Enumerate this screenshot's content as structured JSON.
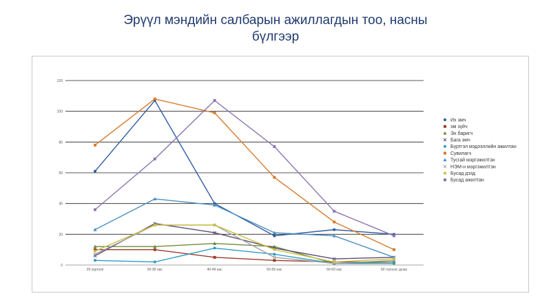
{
  "title_line1": "Эрүүл мэндийн салбарын ажиллагдын тоо, насны",
  "title_line2": "бүлгээр",
  "chart_data": {
    "type": "line",
    "title": "Эрүүл мэндийн салбарын ажиллагдын тоо, насны бүлгээр",
    "categories": [
      "29 хүртэлх",
      "30-39 нас",
      "40-49 нас",
      "50-59 нас",
      "60-69 нас",
      "60 түүнээс дээш"
    ],
    "ylim": [
      0,
      120
    ],
    "yticks": [
      0,
      20,
      40,
      60,
      80,
      100,
      120
    ],
    "grid": true,
    "legend_position": "right",
    "series": [
      {
        "name": "Их эмч",
        "color": "#2e5a9e",
        "marker": "circle",
        "values": [
          61,
          107,
          40,
          19,
          23,
          20
        ]
      },
      {
        "name": "эм зүйч",
        "color": "#9c3a2a",
        "marker": "square",
        "values": [
          10,
          10,
          5,
          3,
          2,
          2
        ]
      },
      {
        "name": "Эх баригч",
        "color": "#6e8b3d",
        "marker": "triangle",
        "values": [
          12,
          12,
          14,
          12,
          1,
          2
        ]
      },
      {
        "name": "Бага эмч",
        "color": "#5b4a7a",
        "marker": "x",
        "values": [
          6,
          27,
          21,
          11,
          4,
          5
        ]
      },
      {
        "name": "Бүртгэл мэдээллийн ажилтан",
        "color": "#2f9bc4",
        "marker": "circle",
        "values": [
          3,
          2,
          11,
          7,
          1,
          1
        ]
      },
      {
        "name": "Сувилагч",
        "color": "#d67a2a",
        "marker": "square",
        "values": [
          78,
          108,
          99,
          57,
          28,
          10
        ]
      },
      {
        "name": "Тусгай мэргэжилтэн",
        "color": "#4a8fc4",
        "marker": "triangle",
        "values": [
          23,
          43,
          39,
          21,
          19,
          5
        ]
      },
      {
        "name": "НЭМ-н мэргэжилтэн",
        "color": "#a0a0a0",
        "marker": "x",
        "values": [
          7,
          26,
          26,
          5,
          1,
          3
        ]
      },
      {
        "name": "Бусад дэзд",
        "color": "#c9c040",
        "marker": "circle",
        "values": [
          9,
          26,
          26,
          10,
          2,
          4
        ]
      },
      {
        "name": "Бусад ажилтан",
        "color": "#8a76b0",
        "marker": "square",
        "values": [
          36,
          69,
          107,
          77,
          35,
          19
        ]
      }
    ]
  }
}
